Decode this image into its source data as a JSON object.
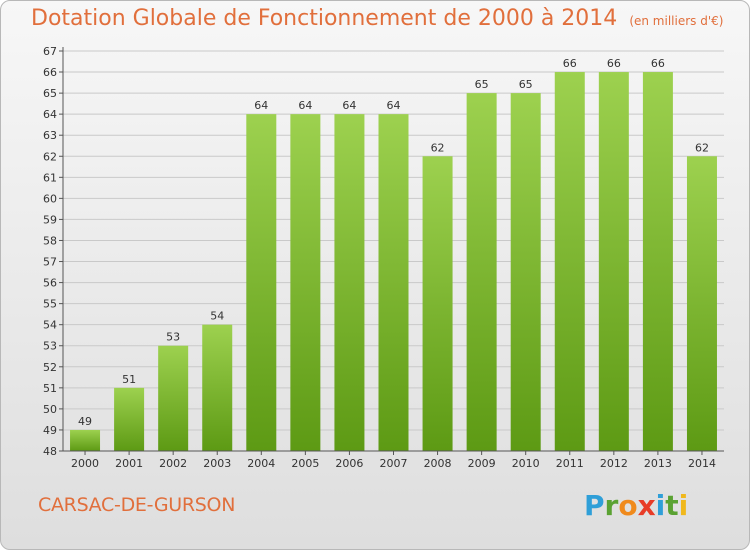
{
  "title": "Dotation Globale de Fonctionnement de 2000 à 2014",
  "unit": "(en milliers d'€)",
  "commune": "CARSAC-DE-GURSON",
  "brand": {
    "letters": [
      "P",
      "r",
      "o",
      "x",
      "i",
      "t",
      "i"
    ],
    "letter_colors": [
      "#2f9fd8",
      "#5aa232",
      "#f08a1c",
      "#e83c27",
      "#2f9fd8",
      "#5aa232",
      "#f0b81c"
    ]
  },
  "colors": {
    "bar_light": "#9dd14f",
    "bar_dark": "#5d9a14",
    "accent": "#e16f3c"
  },
  "chart_data": {
    "type": "bar",
    "categories": [
      "2000",
      "2001",
      "2002",
      "2003",
      "2004",
      "2005",
      "2006",
      "2007",
      "2008",
      "2009",
      "2010",
      "2011",
      "2012",
      "2013",
      "2014"
    ],
    "values": [
      49,
      51,
      53,
      54,
      64,
      64,
      64,
      64,
      62,
      65,
      65,
      66,
      66,
      66,
      62
    ],
    "ylim": [
      48,
      67
    ],
    "yticks": [
      48,
      49,
      50,
      51,
      52,
      53,
      54,
      55,
      56,
      57,
      58,
      59,
      60,
      61,
      62,
      63,
      64,
      65,
      66,
      67
    ],
    "grid": true,
    "legend": "none"
  }
}
